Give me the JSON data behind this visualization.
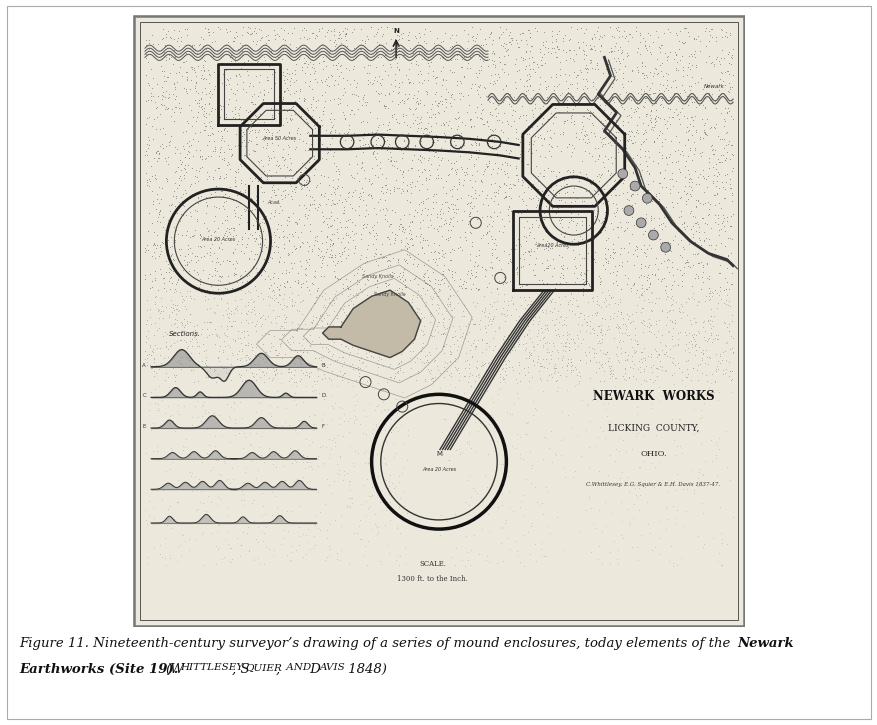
{
  "figure_width": 8.78,
  "figure_height": 7.25,
  "dpi": 100,
  "background_color": "#f5f5f0",
  "map_bg_color": "#e8e4d8",
  "title_main": "NEWARK  WORKS",
  "title_sub1": "LICKING  COUNTY,",
  "title_sub2": "OHIO.",
  "title_credit": "C.Whittlesey, E.G. Squier & E.H. Davis 1837-47.",
  "scale_text1": "SCALE.",
  "scale_text2": "1300 ft. to the Inch.",
  "sections_label": "Sections."
}
